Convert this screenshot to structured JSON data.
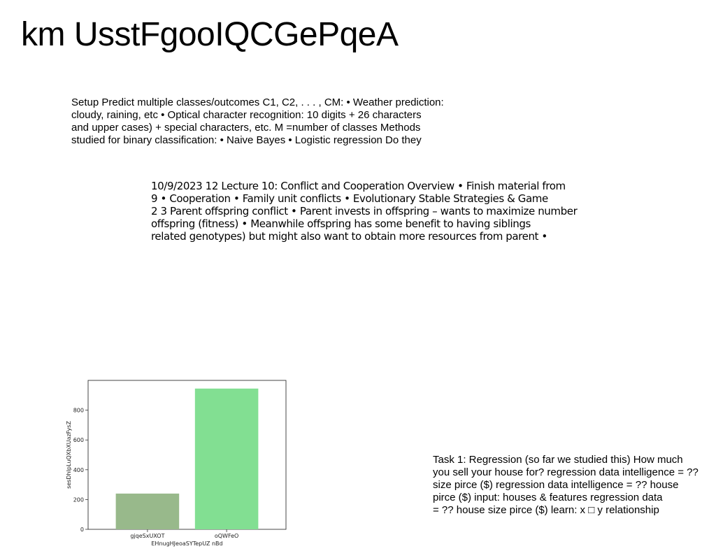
{
  "title": "km UsstFgooIQCGePqeA",
  "blocks": [
    {
      "lines": [
        "Setup Predict multiple classes/outcomes C1, C2, . . . , CM: • Weather prediction:",
        "cloudy, raining, etc • Optical character recognition: 10 digits + 26 characters",
        "and upper cases) + special characters, etc. M =number of classes Methods",
        "studied for binary classification: • Naive Bayes • Logistic regression Do they"
      ]
    },
    {
      "lines": [
        "10/9/2023 12 Lecture 10: Conflict and Cooperation Overview • Finish material from",
        "9 • Cooperation • Family unit conflicts • Evolutionary Stable Strategies & Game",
        "2 3 Parent offspring conflict • Parent invests in offspring – wants to maximize number",
        "offspring (fitness) • Meanwhile offspring has some benefit to having siblings",
        "related genotypes) but might also want to obtain more resources from parent •"
      ]
    },
    {
      "lines": [
        "Task 1: Regression (so far we studied this) How much",
        "you sell your house for? regression data intelligence = ??",
        "size pirce ($) regression data intelligence = ?? house",
        "pirce ($) input: houses & features regression data",
        "= ?? house size pirce ($) learn: x □ y relationship"
      ]
    }
  ],
  "chart_data": {
    "type": "bar",
    "categories": [
      "gjqeSxUXOT",
      "oQWFeO"
    ],
    "values": [
      240,
      945
    ],
    "colors": [
      "#98b98b",
      "#82df92"
    ],
    "xlabel": "EHnugHJeoaSYTepUZ nBd",
    "ylabel": "sesDhIpLuQXbXUazFysZ",
    "ylim": [
      0,
      1000
    ],
    "yticks": [
      0,
      200,
      400,
      600,
      800
    ],
    "grid": false
  }
}
